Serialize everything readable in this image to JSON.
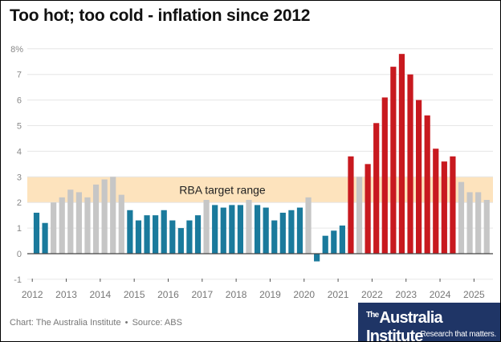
{
  "title": "Too hot; too cold - inflation since 2012",
  "footer": {
    "credit": "Chart: The Australia Institute",
    "separator": "•",
    "source": "Source: ABS"
  },
  "logo": {
    "the": "The",
    "name": "Australia Institute",
    "tagline": "Research that matters."
  },
  "colors": {
    "below": "#1a7a9c",
    "within": "#c6c6c6",
    "above": "#c8191f",
    "band": "#fde3bd"
  },
  "chart_data": {
    "type": "bar",
    "title": "Too hot; too cold - inflation since 2012",
    "ylabel": "%",
    "ylim": [
      -1,
      8
    ],
    "yticks": [
      "-1",
      "0",
      "1",
      "2",
      "3",
      "4",
      "5",
      "6",
      "7",
      "8%"
    ],
    "xticks": [
      "2012",
      "2013",
      "2014",
      "2015",
      "2016",
      "2017",
      "2018",
      "2019",
      "2020",
      "2021",
      "2022",
      "2023",
      "2024",
      "2025"
    ],
    "band": {
      "label": "RBA target range",
      "from": 2,
      "to": 3
    },
    "categories": [
      "2012 Q1",
      "2012 Q2",
      "2012 Q3",
      "2012 Q4",
      "2013 Q1",
      "2013 Q2",
      "2013 Q3",
      "2013 Q4",
      "2014 Q1",
      "2014 Q2",
      "2014 Q3",
      "2014 Q4",
      "2015 Q1",
      "2015 Q2",
      "2015 Q3",
      "2015 Q4",
      "2016 Q1",
      "2016 Q2",
      "2016 Q3",
      "2016 Q4",
      "2017 Q1",
      "2017 Q2",
      "2017 Q3",
      "2017 Q4",
      "2018 Q1",
      "2018 Q2",
      "2018 Q3",
      "2018 Q4",
      "2019 Q1",
      "2019 Q2",
      "2019 Q3",
      "2019 Q4",
      "2020 Q1",
      "2020 Q2",
      "2020 Q3",
      "2020 Q4",
      "2021 Q1",
      "2021 Q2",
      "2021 Q3",
      "2021 Q4",
      "2022 Q1",
      "2022 Q2",
      "2022 Q3",
      "2022 Q4",
      "2023 Q1",
      "2023 Q2",
      "2023 Q3",
      "2023 Q4",
      "2024 Q1",
      "2024 Q2",
      "2024 Q3",
      "2024 Q4",
      "2025 Q1",
      "2025 Q2"
    ],
    "values": [
      1.6,
      1.2,
      2.0,
      2.2,
      2.5,
      2.4,
      2.2,
      2.7,
      2.9,
      3.0,
      2.3,
      1.7,
      1.3,
      1.5,
      1.5,
      1.7,
      1.3,
      1.0,
      1.3,
      1.5,
      2.1,
      1.9,
      1.8,
      1.9,
      1.9,
      2.1,
      1.9,
      1.8,
      1.3,
      1.6,
      1.7,
      1.8,
      2.2,
      -0.3,
      0.7,
      0.9,
      1.1,
      3.8,
      3.0,
      3.5,
      5.1,
      6.1,
      7.3,
      7.8,
      7.0,
      6.0,
      5.4,
      4.1,
      3.6,
      3.8,
      2.8,
      2.4,
      2.4,
      2.1
    ]
  }
}
